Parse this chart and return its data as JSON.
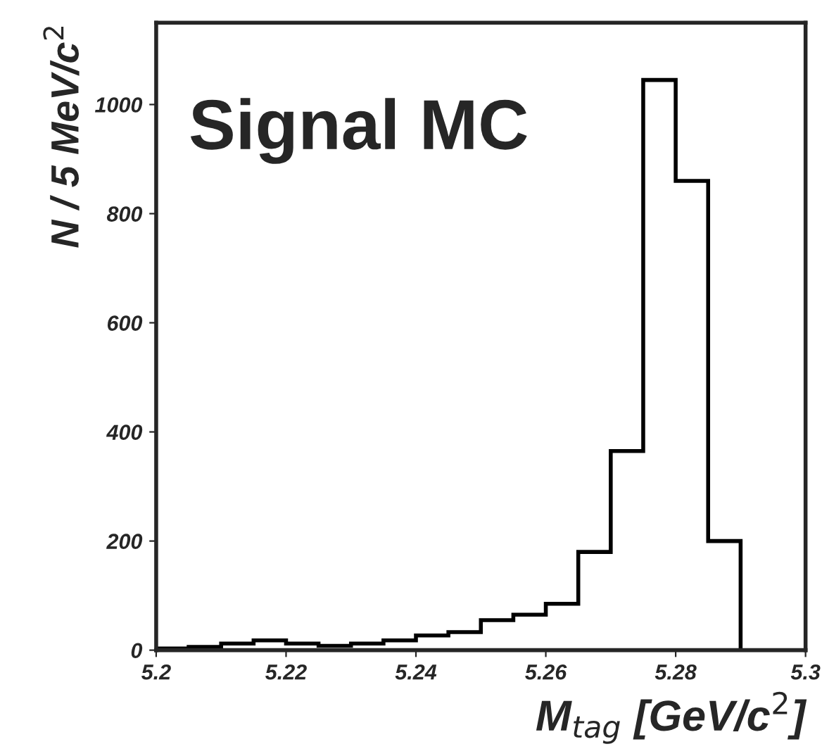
{
  "chart_data": {
    "type": "histogram",
    "bins": [
      5.2,
      5.205,
      5.21,
      5.215,
      5.22,
      5.225,
      5.23,
      5.235,
      5.24,
      5.245,
      5.25,
      5.255,
      5.26,
      5.265,
      5.27,
      5.275,
      5.28,
      5.285,
      5.29
    ],
    "values": [
      3,
      6,
      12,
      18,
      12,
      8,
      12,
      18,
      27,
      33,
      55,
      65,
      85,
      180,
      365,
      1045,
      860,
      200
    ],
    "color": "#000000",
    "xlabel": "M$_{tag}$ [GeV/c$^{2}$]",
    "ylabel": "N / 5 MeV/c$^{2}$",
    "annotations": [
      "Signal MC"
    ],
    "xlim": [
      5.2,
      5.3
    ],
    "ylim": [
      0,
      1150
    ],
    "xticks": [
      {
        "value": 5.2,
        "label": "5.2"
      },
      5.22,
      5.24,
      5.26,
      5.28,
      {
        "value": 5.3,
        "label": "5.3"
      }
    ],
    "yticks": [
      0,
      200,
      400,
      600,
      800,
      1000
    ],
    "grid": false
  }
}
